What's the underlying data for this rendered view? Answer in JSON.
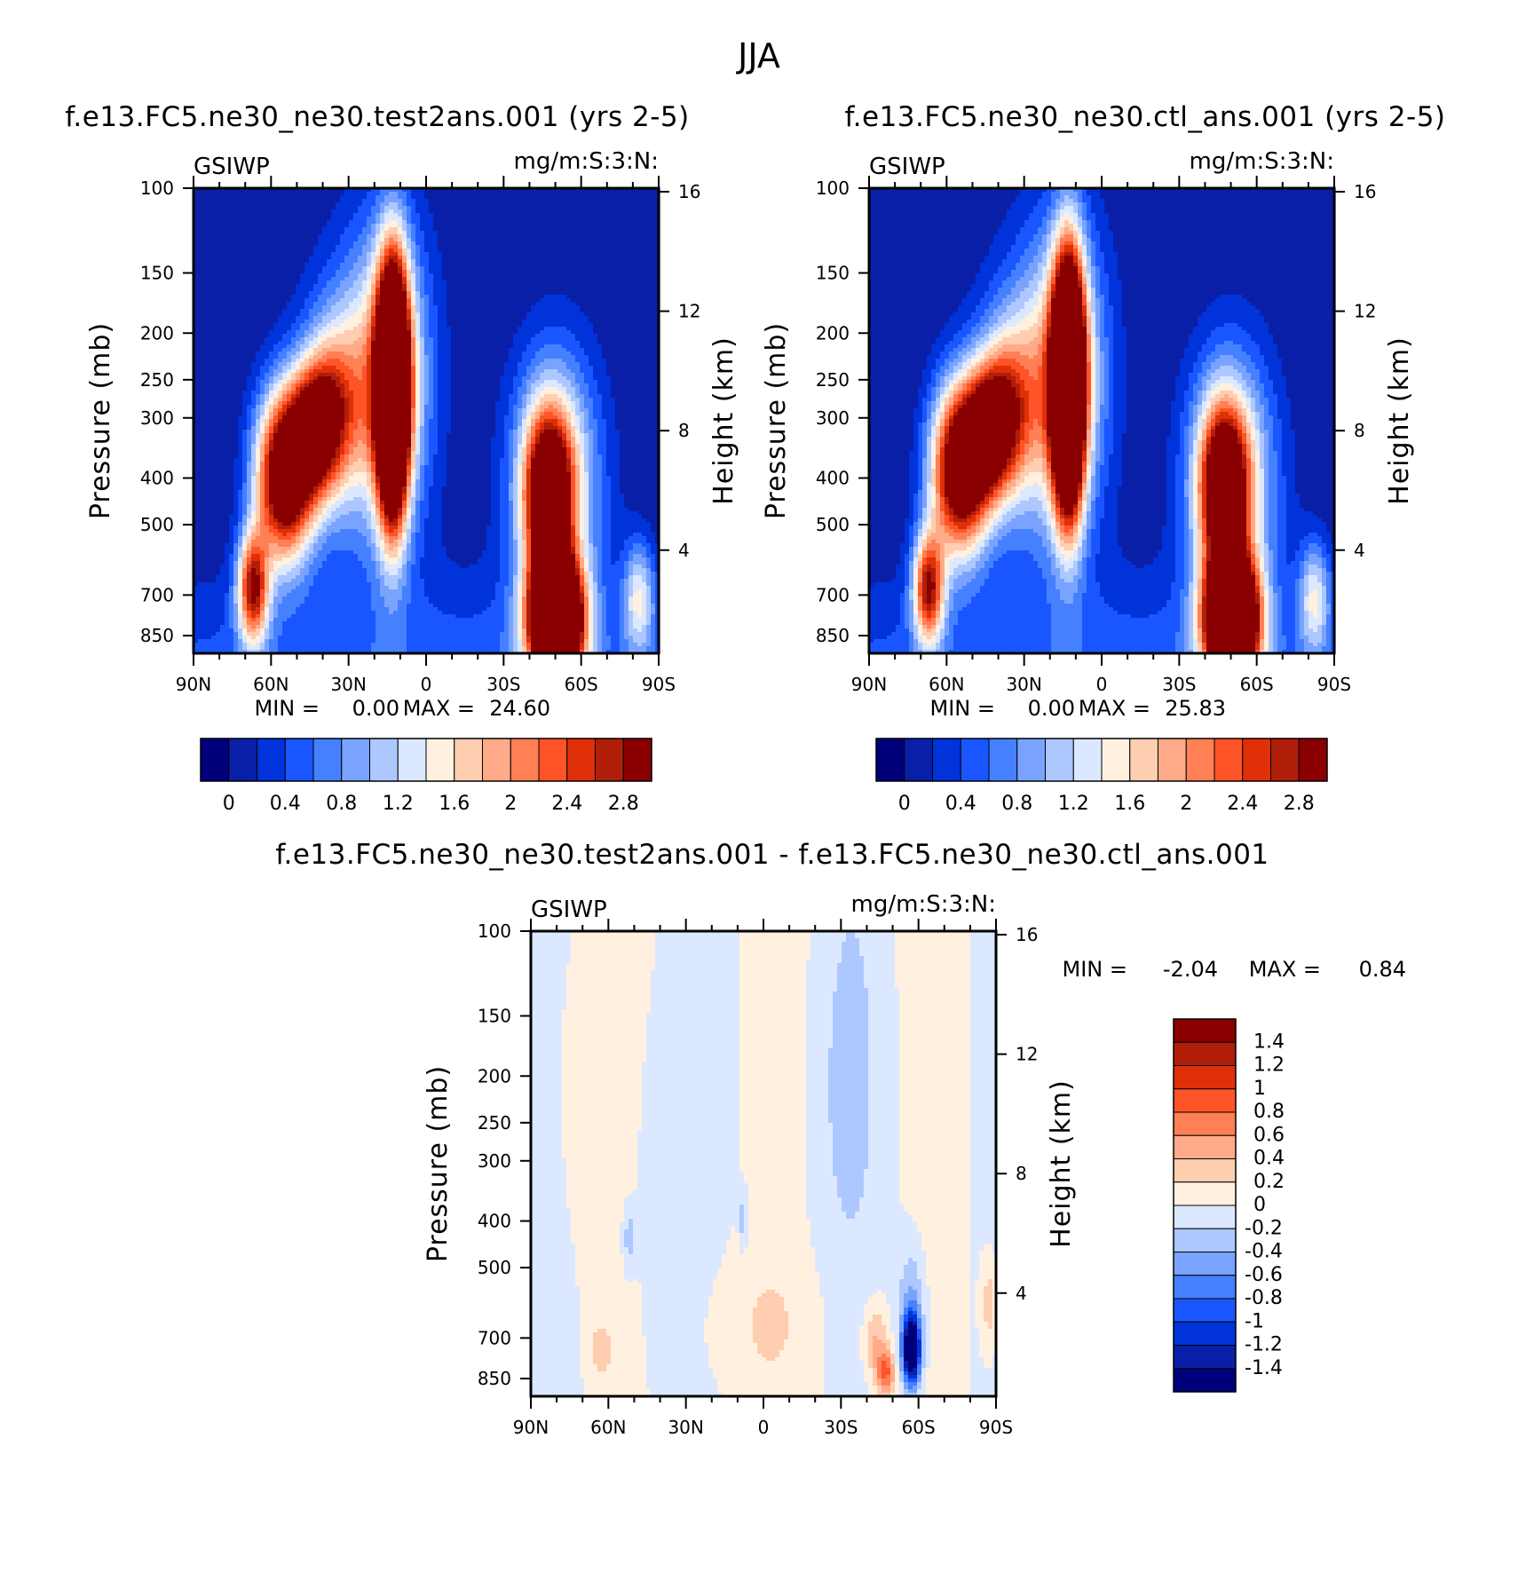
{
  "figure_title": "JJA",
  "colors": {
    "top_scale": [
      "#00007a",
      "#0a1fa8",
      "#0033d9",
      "#1a56ff",
      "#4580ff",
      "#7aa3ff",
      "#adc8ff",
      "#dbe8ff",
      "#fff0e0",
      "#ffcdb0",
      "#ffab8a",
      "#ff8055",
      "#ff5428",
      "#e03008",
      "#b01e0a",
      "#8a0000"
    ],
    "diff_scale": [
      "#8a0000",
      "#b01e0a",
      "#e03008",
      "#ff5428",
      "#ff8055",
      "#ffab8a",
      "#ffcdb0",
      "#fff0e0",
      "#dbe8ff",
      "#adc8ff",
      "#7aa3ff",
      "#4580ff",
      "#1a56ff",
      "#0033d9",
      "#0a1fa8",
      "#00007a"
    ]
  },
  "panels": [
    {
      "id": "test",
      "title": "f.e13.FC5.ne30_ne30.test2ans.001 (yrs 2-5)",
      "left_corner": "GSIWP",
      "right_corner": "mg/m:S:3:N:",
      "min_text": "MIN =",
      "min_value": "0.00",
      "max_text": "MAX =",
      "max_value": "24.60"
    },
    {
      "id": "ctl",
      "title": "f.e13.FC5.ne30_ne30.ctl_ans.001 (yrs 2-5)",
      "left_corner": "GSIWP",
      "right_corner": "mg/m:S:3:N:",
      "min_text": "MIN =",
      "min_value": "0.00",
      "max_text": "MAX =",
      "max_value": "25.83"
    },
    {
      "id": "diff",
      "title": "f.e13.FC5.ne30_ne30.test2ans.001 - f.e13.FC5.ne30_ne30.ctl_ans.001",
      "left_corner": "GSIWP",
      "right_corner": "mg/m:S:3:N:",
      "min_text": "MIN =",
      "min_value": "-2.04",
      "max_text": "MAX =",
      "max_value": "0.84"
    }
  ],
  "axes": {
    "ylabel": "Pressure (mb)",
    "ylabel_right": "Height (km)",
    "pressure_ticks": [
      "100",
      "150",
      "200",
      "250",
      "300",
      "400",
      "500",
      "700",
      "850"
    ],
    "height_ticks": [
      "16",
      "12",
      "8",
      "4"
    ],
    "lat_ticks": [
      "90N",
      "60N",
      "30N",
      "0",
      "30S",
      "60S",
      "90S"
    ]
  },
  "colorbars": {
    "top_labels": [
      "0",
      "0.4",
      "0.8",
      "1.2",
      "1.6",
      "2",
      "2.4",
      "2.8"
    ],
    "diff_labels": [
      "1.4",
      "1.2",
      "1",
      "0.8",
      "0.6",
      "0.4",
      "0.2",
      "0",
      "-0.2",
      "-0.4",
      "-0.6",
      "-0.8",
      "-1",
      "-1.2",
      "-1.4"
    ]
  },
  "chart_data": [
    {
      "type": "heatmap",
      "title": "f.e13.FC5.ne30_ne30.test2ans.001 (yrs 2-5)",
      "variable": "GSIWP",
      "units": "mg/m:S:3:N:",
      "xlabel": "",
      "ylabel": "Pressure (mb)",
      "ylabel_right": "Height (km)",
      "x_range": [
        90,
        -90
      ],
      "y_range": [
        100,
        925
      ],
      "min": 0.0,
      "max": 24.6,
      "levels": [
        0,
        0.2,
        0.4,
        0.6,
        0.8,
        1.0,
        1.2,
        1.4,
        1.6,
        1.8,
        2.0,
        2.2,
        2.4,
        2.6,
        2.8
      ],
      "features": [
        {
          "region": "NH midlatitude band",
          "lat_range": [
            75,
            40
          ],
          "p_range": [
            850,
            300
          ],
          "peak_lat": 55,
          "peak_p": 380,
          "value": "above 2.8"
        },
        {
          "region": "tropical column",
          "lat_range": [
            22,
            5
          ],
          "p_range": [
            550,
            180
          ],
          "value": "above 2.8"
        },
        {
          "region": "SH midlatitude",
          "lat_range": [
            40,
            75
          ],
          "p_range": [
            925,
            350
          ],
          "peak_lat": 50,
          "peak_p": 800,
          "value": "above 2.8"
        }
      ]
    },
    {
      "type": "heatmap",
      "title": "f.e13.FC5.ne30_ne30.ctl_ans.001 (yrs 2-5)",
      "variable": "GSIWP",
      "units": "mg/m:S:3:N:",
      "ylabel": "Pressure (mb)",
      "ylabel_right": "Height (km)",
      "x_range": [
        90,
        -90
      ],
      "y_range": [
        100,
        925
      ],
      "min": 0.0,
      "max": 25.83,
      "levels": [
        0,
        0.2,
        0.4,
        0.6,
        0.8,
        1.0,
        1.2,
        1.4,
        1.6,
        1.8,
        2.0,
        2.2,
        2.4,
        2.6,
        2.8
      ],
      "features": [
        {
          "region": "NH midlatitude band",
          "lat_range": [
            75,
            40
          ],
          "p_range": [
            850,
            300
          ],
          "peak_lat": 55,
          "peak_p": 370,
          "value": "above 2.8"
        },
        {
          "region": "tropical column",
          "lat_range": [
            22,
            5
          ],
          "p_range": [
            550,
            175
          ],
          "value": "above 2.8"
        },
        {
          "region": "SH midlatitude",
          "lat_range": [
            40,
            75
          ],
          "p_range": [
            925,
            340
          ],
          "peak_lat": 50,
          "peak_p": 800,
          "value": "above 2.8"
        }
      ]
    },
    {
      "type": "heatmap",
      "title": "f.e13.FC5.ne30_ne30.test2ans.001 - f.e13.FC5.ne30_ne30.ctl_ans.001",
      "variable": "GSIWP",
      "units": "mg/m:S:3:N:",
      "ylabel": "Pressure (mb)",
      "ylabel_right": "Height (km)",
      "x_range": [
        90,
        -90
      ],
      "y_range": [
        100,
        925
      ],
      "min": -2.04,
      "max": 0.84,
      "levels": [
        -1.4,
        -1.2,
        -1.0,
        -0.8,
        -0.6,
        -0.4,
        -0.2,
        0,
        0.2,
        0.4,
        0.6,
        0.8,
        1.0,
        1.2,
        1.4
      ],
      "features": [
        {
          "region": "SH low-level dipole negative",
          "lat": -57,
          "p": 780,
          "value": -2.04
        },
        {
          "region": "SH low-level dipole positive",
          "lat": -47,
          "p": 850,
          "value": 0.84
        },
        {
          "region": "NH low-level positive",
          "lat": 63,
          "p": 780,
          "value": 0.3
        }
      ]
    }
  ]
}
